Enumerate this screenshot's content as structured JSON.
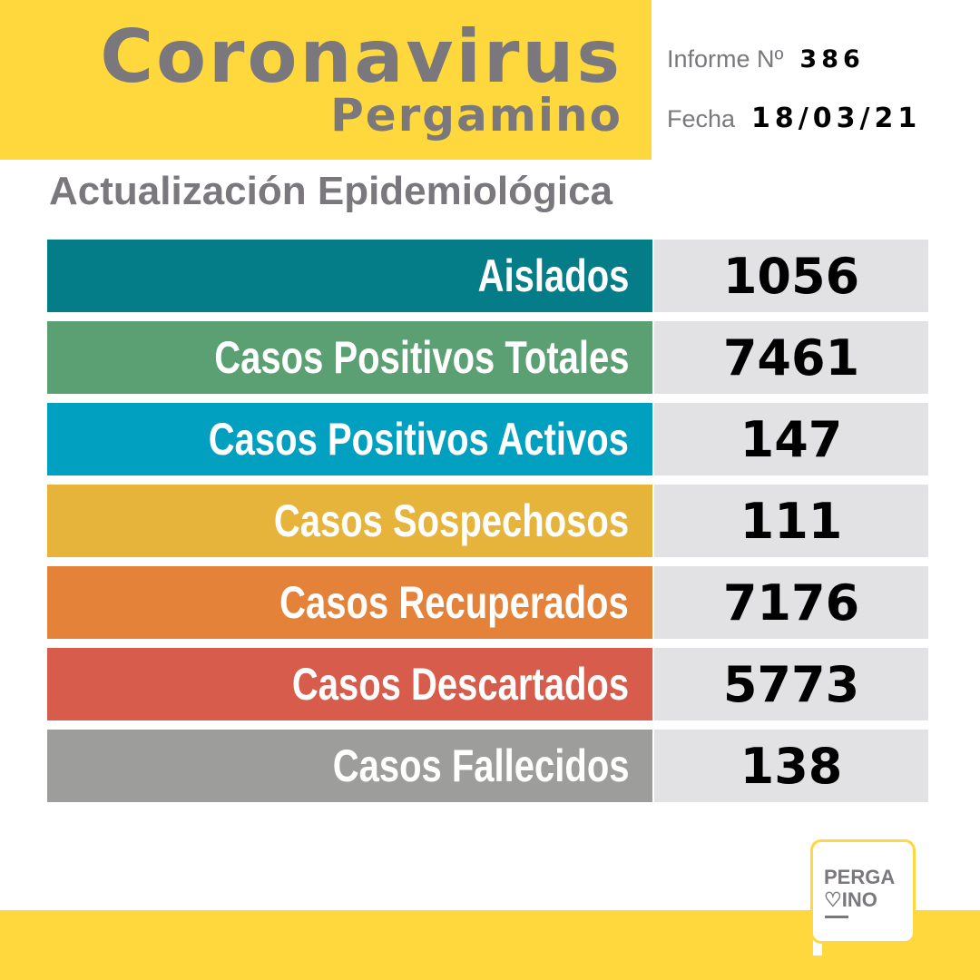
{
  "header": {
    "title": "Coronavirus",
    "subtitle": "Pergamino",
    "informe_label": "Informe Nº",
    "informe_value": "386",
    "fecha_label": "Fecha",
    "fecha_value": "18/03/21"
  },
  "section_title": "Actualización Epidemiológica",
  "rows": [
    {
      "label": "Aislados",
      "value": "1056",
      "color": "#047d89"
    },
    {
      "label": "Casos Positivos Totales",
      "value": "7461",
      "color": "#5aa072"
    },
    {
      "label": "Casos Positivos Activos",
      "value": "147",
      "color": "#02a0c0"
    },
    {
      "label": "Casos Sospechosos",
      "value": "111",
      "color": "#e6b43a"
    },
    {
      "label": "Casos Recuperados",
      "value": "7176",
      "color": "#e5823a"
    },
    {
      "label": "Casos Descartados",
      "value": "5773",
      "color": "#d75c4b"
    },
    {
      "label": "Casos Fallecidos",
      "value": "138",
      "color": "#9d9d9b"
    }
  ],
  "logo": {
    "line1": "PERGA",
    "line2": "♡INO"
  },
  "colors": {
    "brand_yellow": "#fed83c",
    "text_gray": "#7a787d"
  }
}
